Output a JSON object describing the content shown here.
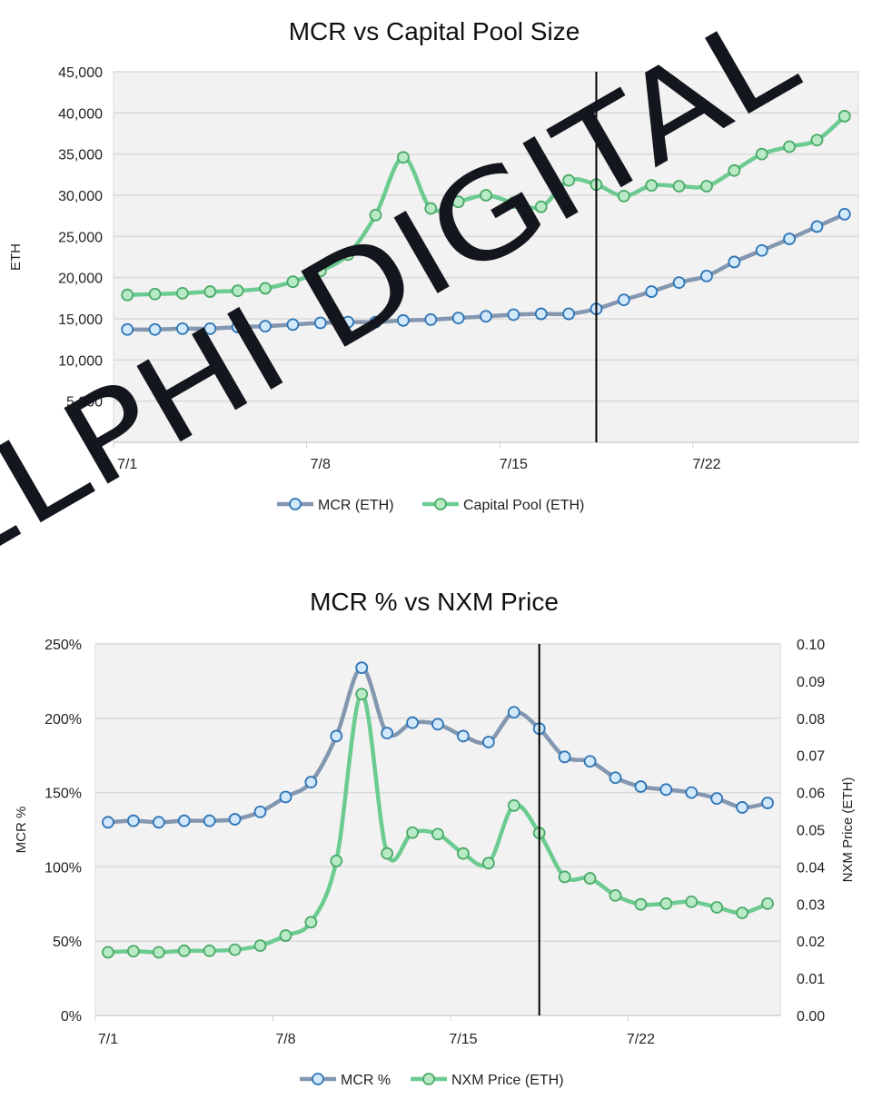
{
  "chart_data": [
    {
      "type": "line",
      "title": "MCR vs Capital Pool Size",
      "xlabel": "",
      "ylabel": "ETH",
      "ylim": [
        0,
        45000
      ],
      "yticks": [
        "0",
        "5,000",
        "10,000",
        "15,000",
        "20,000",
        "25,000",
        "30,000",
        "35,000",
        "40,000",
        "45,000"
      ],
      "grid": true,
      "legend": "bottom",
      "categories": [
        "7/1",
        "7/2",
        "7/3",
        "7/4",
        "7/5",
        "7/6",
        "7/7",
        "7/8",
        "7/9",
        "7/10",
        "7/11",
        "7/12",
        "7/13",
        "7/14",
        "7/15",
        "7/16",
        "7/17",
        "7/18",
        "7/19",
        "7/20",
        "7/21",
        "7/22",
        "7/23",
        "7/24",
        "7/25",
        "7/26",
        "7/27"
      ],
      "xtick_labels": [
        "7/1",
        "7/8",
        "7/15",
        "7/22"
      ],
      "marker_line_at": "7/18",
      "series": [
        {
          "name": "MCR (ETH)",
          "color": "#8497b0",
          "marker_fill": "#d2e8fb",
          "marker_stroke": "#2e75b6",
          "values": [
            13700,
            13700,
            13800,
            13800,
            14000,
            14100,
            14300,
            14500,
            14600,
            14600,
            14800,
            14900,
            15100,
            15300,
            15500,
            15600,
            15600,
            16200,
            17300,
            18300,
            19400,
            20200,
            21900,
            23300,
            24700,
            26200,
            27700
          ]
        },
        {
          "name": "Capital Pool (ETH)",
          "color": "#6ccb91",
          "marker_fill": "#b9eac6",
          "marker_stroke": "#4aaa68",
          "values": [
            17900,
            18000,
            18100,
            18300,
            18400,
            18700,
            19500,
            20800,
            22800,
            27600,
            34600,
            28400,
            29200,
            30000,
            29100,
            28600,
            31800,
            31300,
            29900,
            31200,
            31100,
            31100,
            33000,
            35000,
            35900,
            36700,
            39600
          ]
        }
      ]
    },
    {
      "type": "line",
      "title": "MCR % vs NXM Price",
      "xlabel": "",
      "ylabel": "MCR %",
      "y2label": "NXM Price (ETH)",
      "ylim": [
        0,
        250
      ],
      "y2lim": [
        0,
        0.1
      ],
      "yticks": [
        "0%",
        "50%",
        "100%",
        "150%",
        "200%",
        "250%"
      ],
      "y2ticks": [
        "0.00",
        "0.01",
        "0.02",
        "0.03",
        "0.04",
        "0.05",
        "0.06",
        "0.07",
        "0.08",
        "0.09",
        "0.10"
      ],
      "grid": true,
      "legend": "bottom",
      "categories": [
        "7/1",
        "7/2",
        "7/3",
        "7/4",
        "7/5",
        "7/6",
        "7/7",
        "7/8",
        "7/9",
        "7/10",
        "7/11",
        "7/12",
        "7/13",
        "7/14",
        "7/15",
        "7/16",
        "7/17",
        "7/18",
        "7/19",
        "7/20",
        "7/21",
        "7/22",
        "7/23",
        "7/24",
        "7/25",
        "7/26",
        "7/27"
      ],
      "xtick_labels": [
        "7/1",
        "7/8",
        "7/15",
        "7/22"
      ],
      "marker_line_at": "7/18",
      "series": [
        {
          "name": "MCR %",
          "axis": "left",
          "color": "#8497b0",
          "marker_fill": "#d2e8fb",
          "marker_stroke": "#2e75b6",
          "values": [
            130,
            131,
            130,
            131,
            131,
            132,
            137,
            147,
            157,
            188,
            234,
            190,
            197,
            196,
            188,
            184,
            204,
            193,
            174,
            171,
            160,
            154,
            152,
            150,
            146,
            140,
            143
          ]
        },
        {
          "name": "NXM Price (ETH)",
          "axis": "right",
          "color": "#6ccb91",
          "marker_fill": "#b9eac6",
          "marker_stroke": "#4aaa68",
          "values": [
            0.017,
            0.0173,
            0.017,
            0.0174,
            0.0174,
            0.0177,
            0.0188,
            0.0215,
            0.0251,
            0.0416,
            0.0865,
            0.0436,
            0.0492,
            0.0488,
            0.0436,
            0.041,
            0.0565,
            0.0491,
            0.0373,
            0.0369,
            0.0323,
            0.0299,
            0.0301,
            0.0306,
            0.0291,
            0.0276,
            0.0301
          ]
        }
      ]
    }
  ],
  "watermark": "DELPHI DIGITAL"
}
